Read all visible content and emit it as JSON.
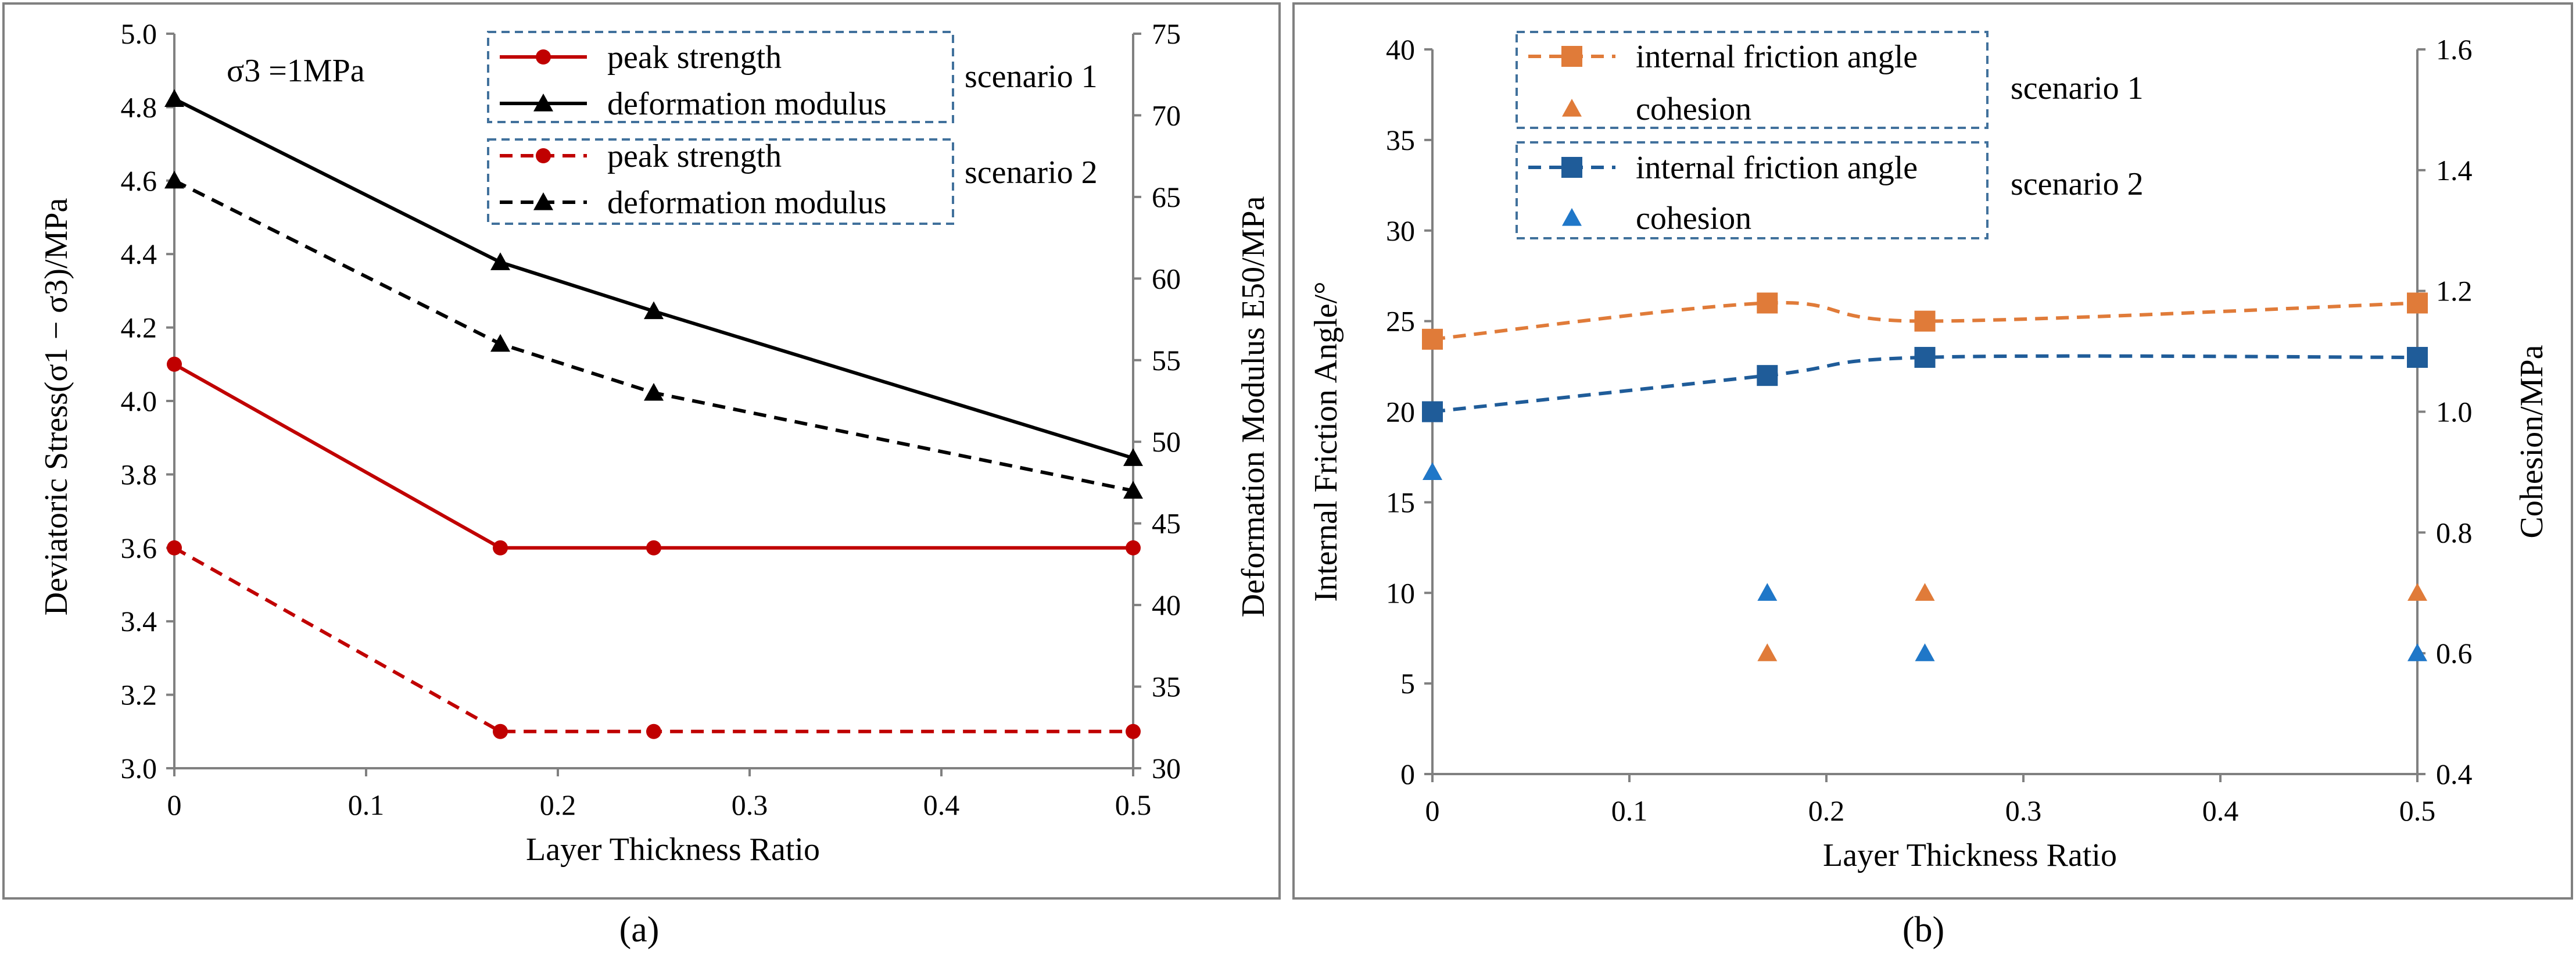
{
  "chart_data": [
    {
      "type": "line",
      "panel_label": "(a)",
      "annotation": "σ3 =1MPa",
      "xlabel": "Layer Thickness Ratio",
      "ylabel_left": "Deviatoric Stress(σ1 − σ3)/MPa",
      "ylabel_right": "Deformation Modulus E50/MPa",
      "x_ticks": [
        "0",
        "0.1",
        "0.2",
        "0.3",
        "0.4",
        "0.5"
      ],
      "y_left_ticks": [
        "3.0",
        "3.2",
        "3.4",
        "3.6",
        "3.8",
        "4.0",
        "4.2",
        "4.4",
        "4.6",
        "4.8",
        "5.0"
      ],
      "y_right_ticks": [
        "30",
        "35",
        "40",
        "45",
        "50",
        "55",
        "60",
        "65",
        "70",
        "75"
      ],
      "xlim": [
        0,
        0.5
      ],
      "ylim_left": [
        3.0,
        5.0
      ],
      "ylim_right": [
        30,
        75
      ],
      "legend_groups": [
        "scenario 1",
        "scenario 2"
      ],
      "series": [
        {
          "name": "peak strength",
          "group": "scenario 1",
          "axis": "left",
          "style": "solid",
          "marker": "circle",
          "color": "#c00000",
          "x": [
            0,
            0.17,
            0.25,
            0.5
          ],
          "y": [
            4.1,
            3.6,
            3.6,
            3.6
          ]
        },
        {
          "name": "deformation modulus",
          "group": "scenario 1",
          "axis": "right",
          "style": "solid",
          "marker": "triangle",
          "color": "#000000",
          "x": [
            0,
            0.17,
            0.25,
            0.5
          ],
          "y": [
            71.0,
            61.0,
            58.0,
            49.0
          ]
        },
        {
          "name": "peak strength",
          "group": "scenario 2",
          "axis": "left",
          "style": "dashed",
          "marker": "circle",
          "color": "#c00000",
          "x": [
            0,
            0.17,
            0.25,
            0.5
          ],
          "y": [
            3.6,
            3.1,
            3.1,
            3.1
          ]
        },
        {
          "name": "deformation modulus",
          "group": "scenario 2",
          "axis": "right",
          "style": "dashed",
          "marker": "triangle",
          "color": "#000000",
          "x": [
            0,
            0.17,
            0.25,
            0.5
          ],
          "y": [
            66.0,
            56.0,
            53.0,
            47.0
          ]
        }
      ]
    },
    {
      "type": "line",
      "panel_label": "(b)",
      "xlabel": "Layer Thickness Ratio",
      "ylabel_left": "Internal Friction Angle/°",
      "ylabel_right": "Cohesion/MPa",
      "x_ticks": [
        "0",
        "0.1",
        "0.2",
        "0.3",
        "0.4",
        "0.5"
      ],
      "y_left_ticks": [
        "0",
        "5",
        "10",
        "15",
        "20",
        "25",
        "30",
        "35",
        "40"
      ],
      "y_right_ticks": [
        "0.4",
        "0.6",
        "0.8",
        "1.0",
        "1.2",
        "1.4",
        "1.6"
      ],
      "xlim": [
        0,
        0.5
      ],
      "ylim_left": [
        0,
        40
      ],
      "ylim_right": [
        0.4,
        1.6
      ],
      "legend_groups": [
        "scenario 1",
        "scenario 2"
      ],
      "series": [
        {
          "name": "internal friction angle",
          "group": "scenario 1",
          "axis": "left",
          "style": "dashed",
          "marker": "square",
          "color": "#e07b39",
          "x": [
            0,
            0.17,
            0.25,
            0.5
          ],
          "y": [
            24,
            26,
            25,
            26
          ]
        },
        {
          "name": "cohesion",
          "group": "scenario 1",
          "axis": "right",
          "style": "none",
          "marker": "triangle",
          "color": "#e07b39",
          "x": [
            0,
            0.17,
            0.25,
            0.5
          ],
          "y": [
            0.9,
            0.6,
            0.7,
            0.7
          ]
        },
        {
          "name": "internal friction angle",
          "group": "scenario 2",
          "axis": "left",
          "style": "dashed",
          "marker": "square",
          "color": "#1f5c99",
          "x": [
            0,
            0.17,
            0.25,
            0.5
          ],
          "y": [
            20,
            22,
            23,
            23
          ]
        },
        {
          "name": "cohesion",
          "group": "scenario 2",
          "axis": "right",
          "style": "none",
          "marker": "triangle",
          "color": "#1f77c8",
          "x": [
            0,
            0.17,
            0.25,
            0.5
          ],
          "y": [
            0.9,
            0.7,
            0.6,
            0.6
          ]
        }
      ]
    }
  ]
}
